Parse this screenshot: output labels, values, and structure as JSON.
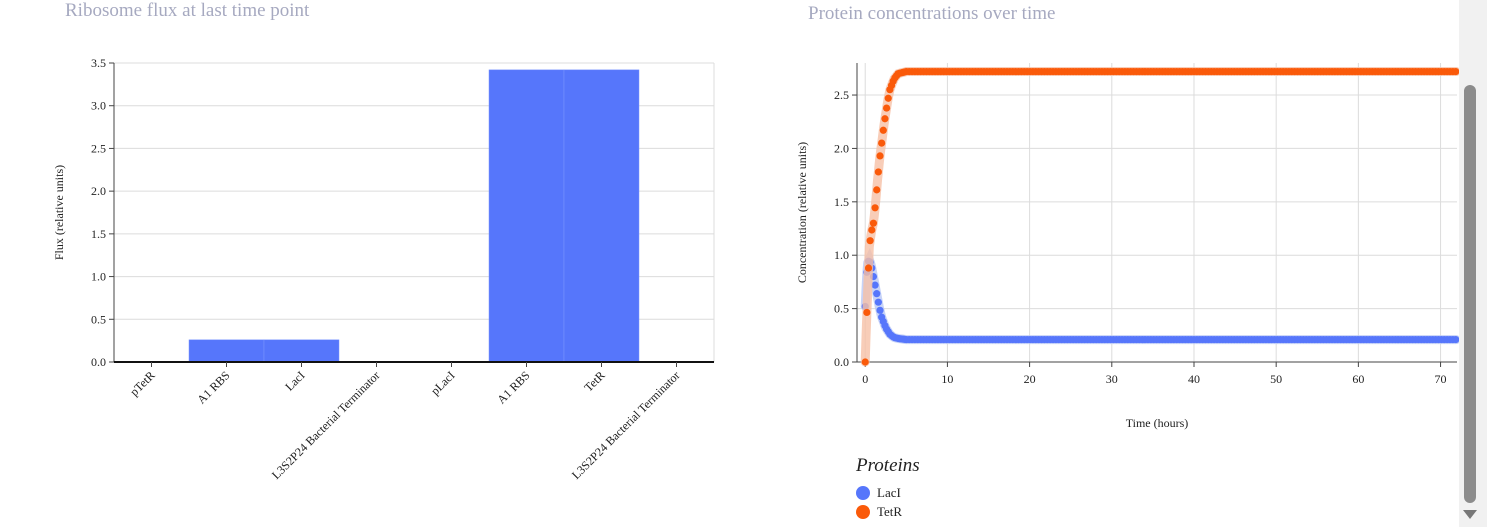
{
  "left_title": "Ribosome flux at last time point",
  "right_title": "Protein concentrations over time",
  "legend": {
    "title": "Proteins",
    "items": [
      {
        "label": "LacI",
        "color": "#5676fb"
      },
      {
        "label": "TetR",
        "color": "#fa5a0a"
      }
    ]
  },
  "chart_data": [
    {
      "type": "bar",
      "title": "Ribosome flux at last time point",
      "xlabel": "",
      "ylabel": "Flux (relative units)",
      "ylim": [
        0,
        3.5
      ],
      "yticks": [
        "0.0",
        "0.5",
        "1.0",
        "1.5",
        "2.0",
        "2.5",
        "3.0",
        "3.5"
      ],
      "categories": [
        "pTetR",
        "A1 RBS",
        "LacI",
        "L3S2P24 Bacterial Terminator",
        "pLacI",
        "A1 RBS",
        "TetR",
        "L3S2P24 Bacterial Terminator"
      ],
      "values": [
        0,
        0.26,
        0.26,
        0,
        0,
        3.42,
        3.42,
        0
      ],
      "color": "#5676fb",
      "grid": true
    },
    {
      "type": "scatter",
      "title": "Protein concentrations over time",
      "xlabel": "Time (hours)",
      "ylabel": "Concentration (relative units)",
      "xlim": [
        -1,
        72
      ],
      "ylim": [
        0,
        2.8
      ],
      "xticks": [
        "0",
        "10",
        "20",
        "30",
        "40",
        "50",
        "60",
        "70"
      ],
      "yticks": [
        "0.0",
        "0.5",
        "1.0",
        "1.5",
        "2.0",
        "2.5"
      ],
      "grid": true,
      "legend_position": "bottom-left",
      "series": [
        {
          "name": "LacI",
          "color": "#5676fb",
          "band_color": "#b9c8f5",
          "x": [
            0,
            0.25,
            0.5,
            0.75,
            1,
            1.25,
            1.5,
            1.75,
            2,
            2.5,
            3,
            3.5,
            4,
            5,
            72
          ],
          "y": [
            0.52,
            0.92,
            0.96,
            0.9,
            0.8,
            0.7,
            0.6,
            0.5,
            0.42,
            0.32,
            0.26,
            0.23,
            0.22,
            0.21,
            0.21
          ]
        },
        {
          "name": "TetR",
          "color": "#fa5a0a",
          "band_color": "#f6c0a6",
          "x": [
            0,
            0.25,
            0.5,
            0.75,
            1,
            1.25,
            1.5,
            1.75,
            2,
            2.25,
            2.5,
            2.75,
            3,
            3.5,
            4,
            5,
            72
          ],
          "y": [
            0.0,
            0.58,
            1.08,
            1.22,
            1.3,
            1.48,
            1.7,
            1.9,
            2.05,
            2.2,
            2.33,
            2.45,
            2.55,
            2.65,
            2.7,
            2.72,
            2.72
          ]
        }
      ]
    }
  ]
}
